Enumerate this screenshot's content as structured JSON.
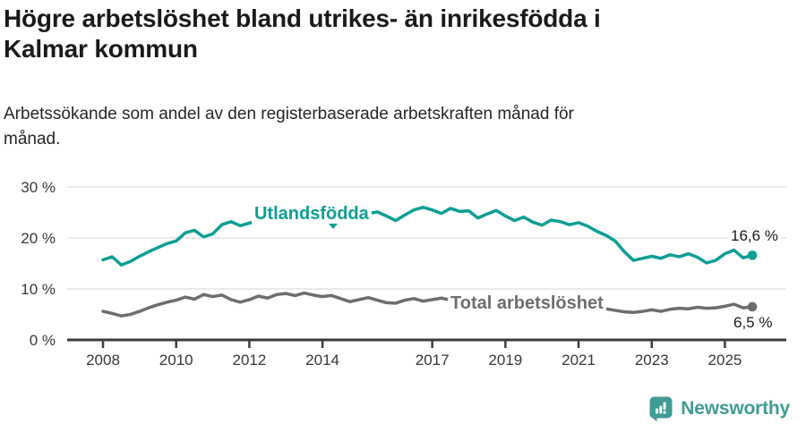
{
  "header": {
    "title_lines": [
      "Högre arbetslöshet bland utrikes- än inrikesfödda i",
      "Kalmar kommun"
    ],
    "subtitle_lines": [
      "Arbetssökande som andel av den registerbaserade arbetskraften månad för",
      "månad."
    ]
  },
  "colors": {
    "grid": "#e3e3e3",
    "axis": "#3c3c3c",
    "accent_teal": "#0d9e94",
    "accent_gray": "#6d6d71",
    "brand_teal": "#3f9c94"
  },
  "chart_data": {
    "type": "line",
    "title": "Högre arbetslöshet bland utrikes- än inrikesfödda i Kalmar kommun",
    "subtitle": "Arbetssökande som andel av den registerbaserade arbetskraften månad för månad.",
    "x_start_year": 2008,
    "x_step_years": 0.25,
    "x_range": [
      2008,
      2025.75
    ],
    "ylim": [
      0,
      32
    ],
    "grid": "horizontal",
    "legend_position": "inline-labels",
    "x_axis": {
      "ticks": [
        {
          "year": 2008,
          "label": "2008"
        },
        {
          "year": 2010,
          "label": "2010"
        },
        {
          "year": 2012,
          "label": "2012"
        },
        {
          "year": 2014,
          "label": "2014"
        },
        {
          "year": 2017,
          "label": "2017"
        },
        {
          "year": 2019,
          "label": "2019"
        },
        {
          "year": 2021,
          "label": "2021"
        },
        {
          "year": 2023,
          "label": "2023"
        },
        {
          "year": 2025,
          "label": "2025"
        }
      ]
    },
    "y_axis": {
      "ticks": [
        {
          "value": 0,
          "label": "0 %"
        },
        {
          "value": 10,
          "label": "10 %"
        },
        {
          "value": 20,
          "label": "20 %"
        },
        {
          "value": 30,
          "label": "30 %"
        }
      ]
    },
    "series": [
      {
        "name": "Utlandsfödda",
        "color": "#0d9e94",
        "end_label": "16,6 %",
        "end_value": 16.6,
        "values": [
          15.7,
          16.3,
          14.7,
          15.4,
          16.4,
          17.3,
          18.1,
          18.9,
          19.4,
          21.0,
          21.5,
          20.2,
          20.8,
          22.6,
          23.2,
          22.4,
          22.9,
          23.5,
          23.1,
          23.6,
          23.9,
          24.3,
          24.0,
          23.8,
          24.1,
          24.5,
          24.2,
          24.0,
          24.3,
          24.8,
          25.1,
          24.3,
          23.4,
          24.5,
          25.5,
          26.0,
          25.5,
          24.8,
          25.8,
          25.2,
          25.3,
          23.9,
          24.7,
          25.4,
          24.3,
          23.4,
          24.1,
          23.1,
          22.5,
          23.5,
          23.2,
          22.6,
          23.0,
          22.3,
          21.3,
          20.5,
          19.4,
          17.3,
          15.6,
          16.0,
          16.4,
          16.0,
          16.7,
          16.3,
          16.9,
          16.2,
          15.1,
          15.6,
          16.9,
          17.6,
          16.1,
          16.6
        ]
      },
      {
        "name": "Total arbetslöshet",
        "color": "#6d6d71",
        "end_label": "6,5 %",
        "end_value": 6.5,
        "values": [
          5.6,
          5.2,
          4.7,
          5.0,
          5.6,
          6.3,
          6.9,
          7.4,
          7.8,
          8.4,
          8.0,
          8.9,
          8.5,
          8.8,
          7.9,
          7.4,
          7.9,
          8.6,
          8.2,
          8.9,
          9.1,
          8.7,
          9.2,
          8.8,
          8.5,
          8.7,
          8.1,
          7.5,
          7.9,
          8.3,
          7.8,
          7.3,
          7.2,
          7.8,
          8.1,
          7.6,
          7.9,
          8.2,
          7.8,
          7.5,
          7.3,
          7.6,
          7.2,
          6.9,
          6.8,
          7.1,
          6.9,
          6.7,
          7.1,
          8.0,
          7.8,
          7.4,
          7.2,
          6.9,
          6.5,
          6.1,
          5.8,
          5.5,
          5.4,
          5.6,
          5.9,
          5.6,
          6.0,
          6.2,
          6.1,
          6.4,
          6.2,
          6.3,
          6.6,
          7.0,
          6.3,
          6.5
        ]
      }
    ]
  },
  "branding": {
    "name": "Newsworthy",
    "logo_icon": "bar-chart-speech-bubble-icon"
  }
}
